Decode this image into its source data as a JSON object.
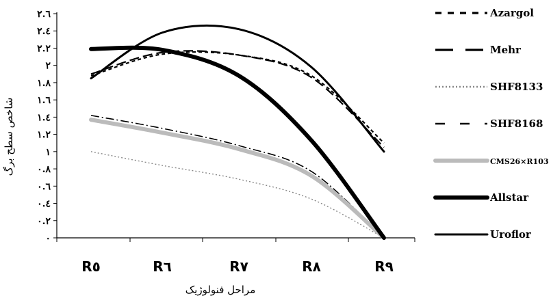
{
  "chart_data": {
    "type": "line",
    "categories": [
      "R٥",
      "R٦",
      "R٧",
      "R٨",
      "R٩"
    ],
    "xlabel": "مراحل فنولوژیک",
    "ylabel": "شاخص سطح برگ",
    "ylim": [
      0,
      2.6
    ],
    "yticks": [
      0,
      0.2,
      0.4,
      0.6,
      0.8,
      1,
      1.2,
      1.4,
      1.6,
      1.8,
      2,
      2.2,
      2.4,
      2.6
    ],
    "ytick_labels": [
      "٠",
      "٠.٢",
      "٠.٤",
      "٠.٦",
      "٠.٨",
      "١",
      "١.٢",
      "١.٤",
      "١.٦",
      "١.٨",
      "٢",
      "٢.٢",
      "٢.٤",
      "٢.٦"
    ],
    "grid": false,
    "legend_position": "right",
    "series": [
      {
        "name": "Azargol",
        "values": [
          1.88,
          2.13,
          2.12,
          1.88,
          1.1
        ],
        "style": "dashed-short",
        "color": "#000000"
      },
      {
        "name": "Mehr",
        "values": [
          1.9,
          2.15,
          2.12,
          1.86,
          1.05
        ],
        "style": "dashed-long",
        "color": "#000000"
      },
      {
        "name": "SHF8133",
        "values": [
          1.0,
          0.84,
          0.68,
          0.45,
          0.0
        ],
        "style": "dotted",
        "color": "#888888"
      },
      {
        "name": "SHF8168",
        "values": [
          1.42,
          1.27,
          1.07,
          0.77,
          0.0
        ],
        "style": "dash-dot",
        "color": "#000000"
      },
      {
        "name": "CMS26×R103",
        "values": [
          1.37,
          1.22,
          1.03,
          0.72,
          0.0
        ],
        "style": "solid-thick",
        "color": "#bbbbbb"
      },
      {
        "name": "Allstar",
        "values": [
          2.19,
          2.18,
          1.88,
          1.13,
          0.0
        ],
        "style": "solid-heavy",
        "color": "#000000"
      },
      {
        "name": "Uroflor",
        "values": [
          1.85,
          2.38,
          2.42,
          1.98,
          1.0
        ],
        "style": "solid",
        "color": "#000000"
      }
    ]
  }
}
